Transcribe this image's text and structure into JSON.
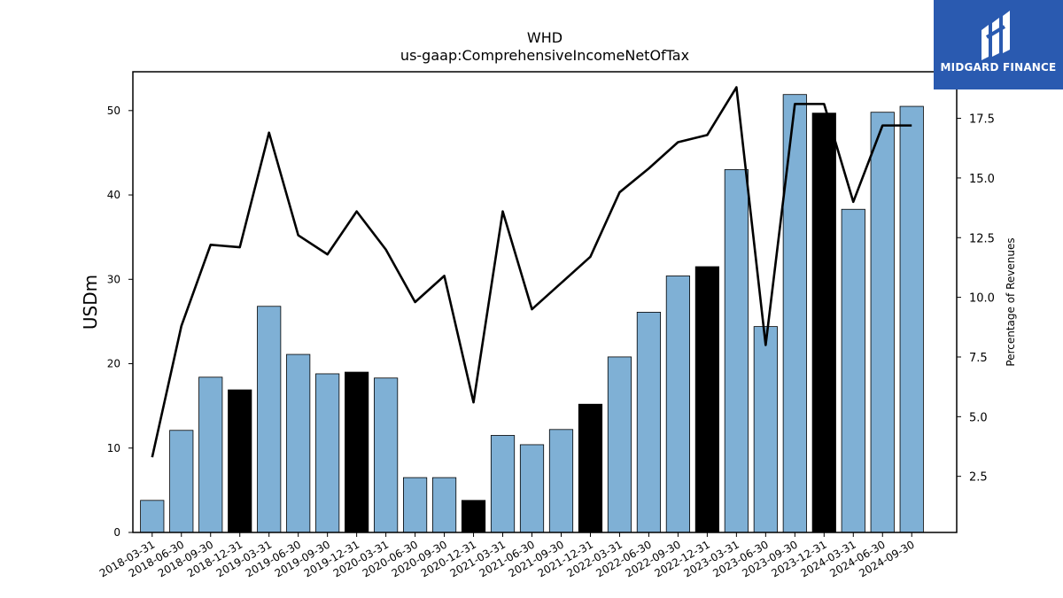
{
  "chart_data": {
    "type": "bar",
    "title": "WHD",
    "subtitle": "us-gaap:ComprehensiveIncomeNetOfTax",
    "ylabel": "USDm",
    "y2label": "Percentage of Revenues",
    "ylim": [
      0,
      54.6
    ],
    "y2lim": [
      0.15,
      19.45
    ],
    "yticks": [
      0,
      10,
      20,
      30,
      40,
      50
    ],
    "y2ticks": [
      2.5,
      5.0,
      7.5,
      10.0,
      12.5,
      15.0,
      17.5
    ],
    "grid": false,
    "categories": [
      "2018-03-31",
      "2018-06-30",
      "2018-09-30",
      "2018-12-31",
      "2019-03-31",
      "2019-06-30",
      "2019-09-30",
      "2019-12-31",
      "2020-03-31",
      "2020-06-30",
      "2020-09-30",
      "2020-12-31",
      "2021-03-31",
      "2021-06-30",
      "2021-09-30",
      "2021-12-31",
      "2022-03-31",
      "2022-06-30",
      "2022-09-30",
      "2022-12-31",
      "2023-03-31",
      "2023-06-30",
      "2023-09-30",
      "2023-12-31",
      "2024-03-31",
      "2024-06-30",
      "2024-09-30"
    ],
    "series": [
      {
        "kind": "bar",
        "axis": "left",
        "values": [
          3.8,
          12.1,
          18.4,
          16.9,
          26.8,
          21.1,
          18.8,
          19.0,
          18.3,
          6.5,
          6.5,
          3.8,
          11.5,
          10.4,
          12.2,
          15.2,
          20.8,
          26.1,
          30.4,
          31.5,
          43.0,
          24.4,
          51.9,
          49.7,
          38.3,
          49.8,
          50.5
        ],
        "colors": [
          "#7fb0d5",
          "#7fb0d5",
          "#7fb0d5",
          "#000000",
          "#7fb0d5",
          "#7fb0d5",
          "#7fb0d5",
          "#000000",
          "#7fb0d5",
          "#7fb0d5",
          "#7fb0d5",
          "#000000",
          "#7fb0d5",
          "#7fb0d5",
          "#7fb0d5",
          "#000000",
          "#7fb0d5",
          "#7fb0d5",
          "#7fb0d5",
          "#000000",
          "#7fb0d5",
          "#7fb0d5",
          "#7fb0d5",
          "#000000",
          "#7fb0d5",
          "#7fb0d5",
          "#7fb0d5"
        ]
      },
      {
        "kind": "line",
        "axis": "right",
        "color": "#000000",
        "values": [
          3.3,
          8.8,
          12.2,
          12.1,
          16.9,
          12.6,
          11.8,
          13.6,
          12.0,
          9.8,
          10.9,
          5.6,
          13.6,
          9.5,
          10.6,
          11.7,
          14.4,
          15.4,
          16.5,
          16.8,
          18.8,
          8.0,
          18.1,
          18.1,
          14.0,
          17.2,
          17.2
        ]
      }
    ]
  },
  "logo": {
    "text": "MIDGARD FINANCE",
    "bg": "#2a5ab0",
    "fg": "#ffffff"
  }
}
